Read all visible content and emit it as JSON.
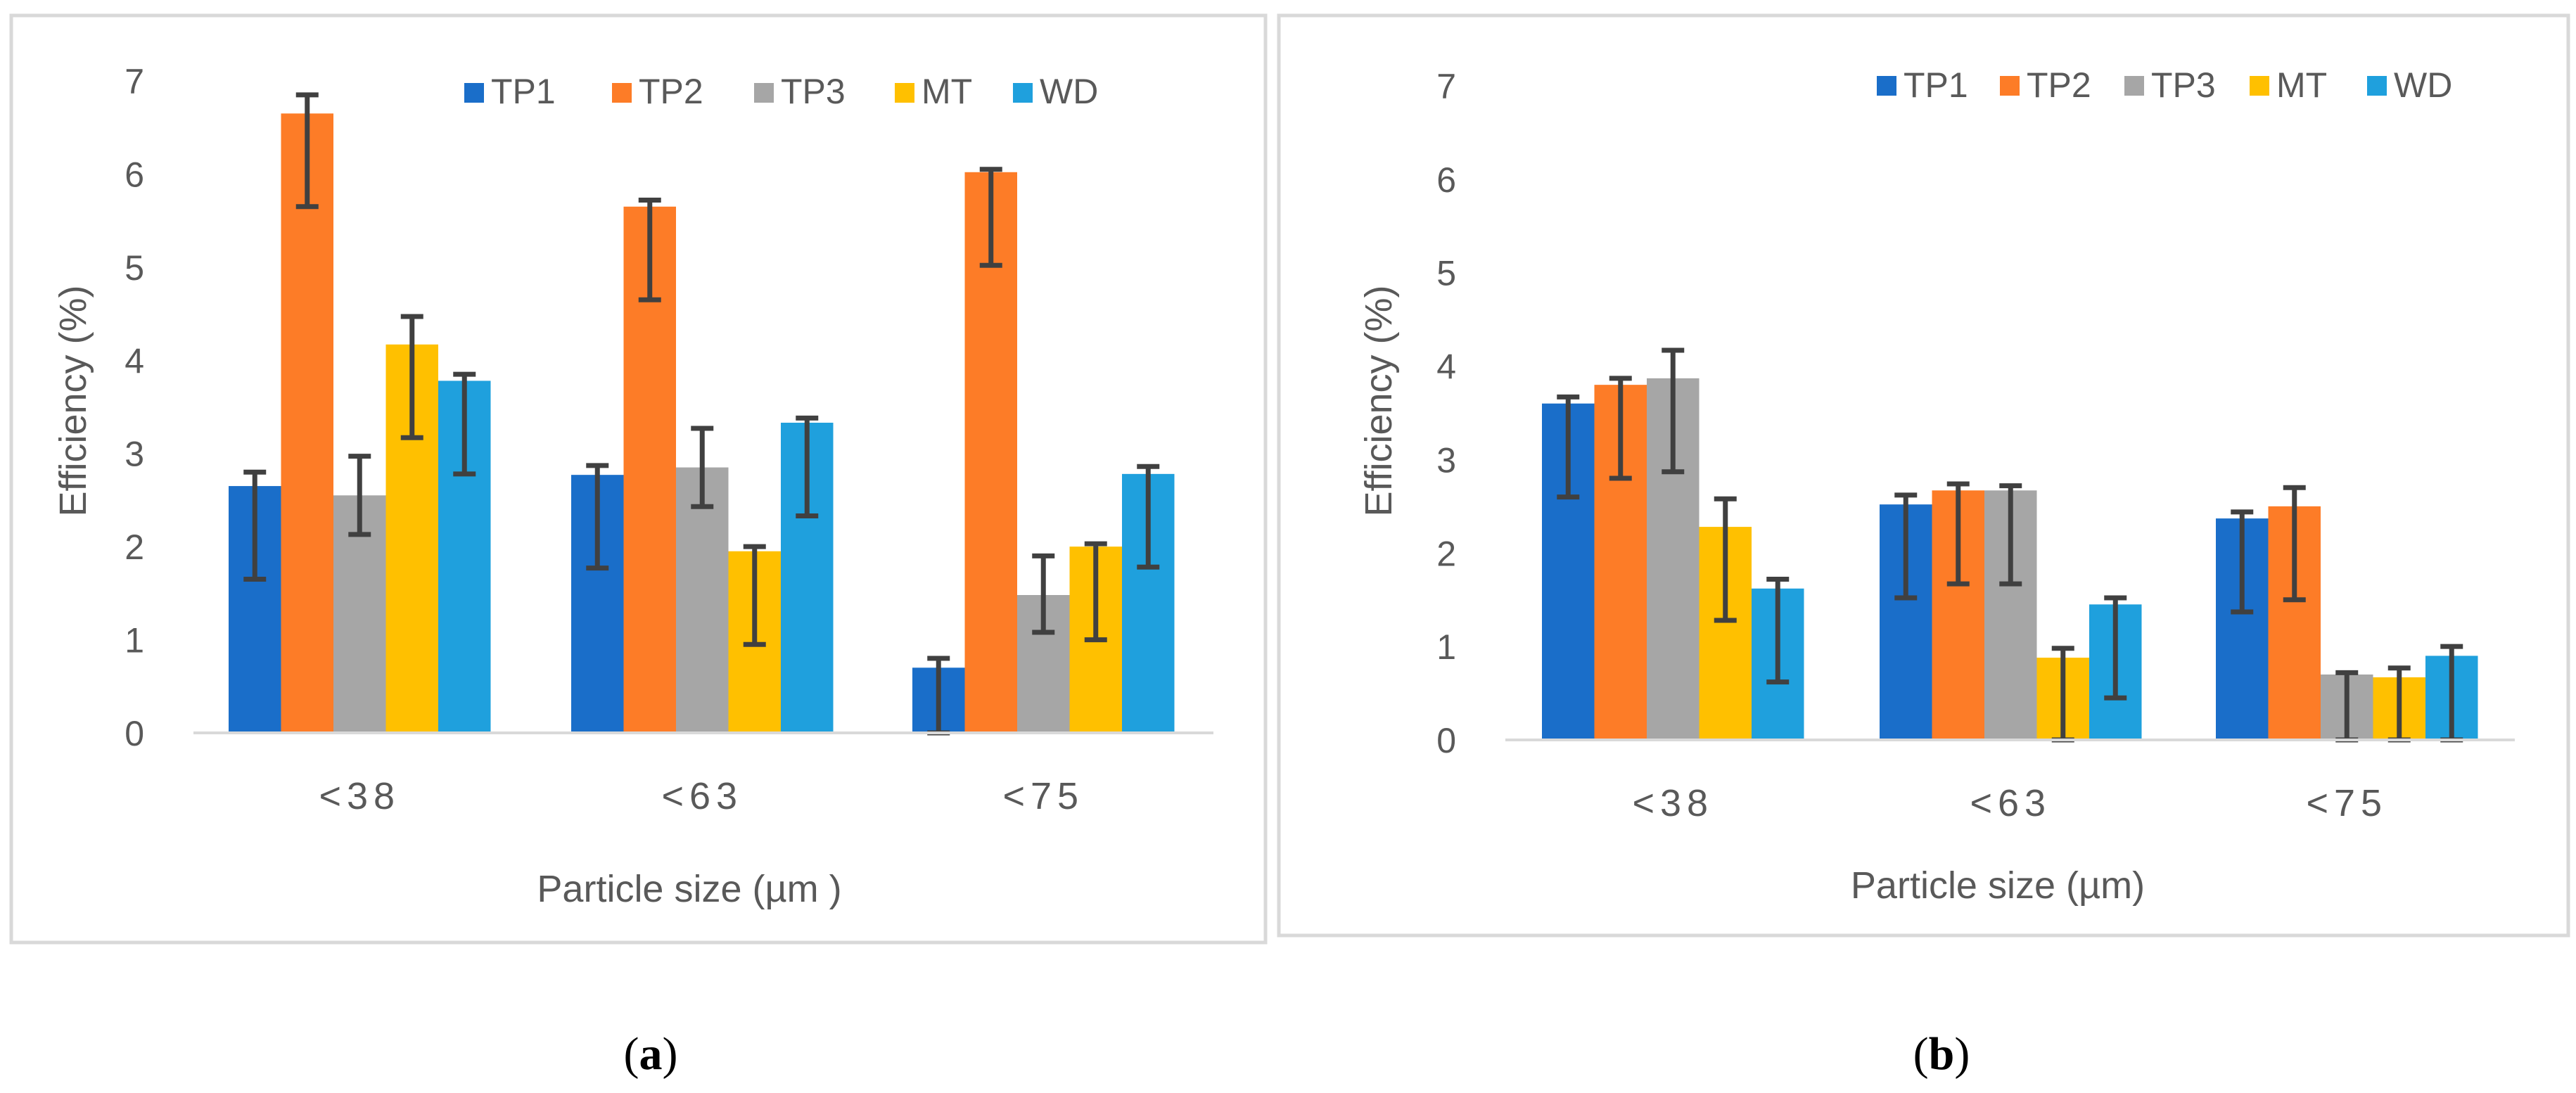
{
  "colors": {
    "TP1": "#1a6ec9",
    "TP2": "#fd7c27",
    "TP3": "#a6a6a6",
    "MT": "#ffc000",
    "WD": "#1fa0dd",
    "error_bar": "#404040",
    "axis_text": "#595959",
    "border": "#d9d9d9"
  },
  "chart_data": [
    {
      "type": "bar",
      "caption": "(a)",
      "caption_letter": "a",
      "title": "",
      "xlabel": "Particle size (µm )",
      "ylabel": "Efficiency (%)",
      "ylim": [
        0,
        7
      ],
      "yticks": [
        "0",
        "1",
        "2",
        "3",
        "4",
        "5",
        "6",
        "7"
      ],
      "grid": false,
      "legend_position": "top",
      "categories": [
        "<38",
        "<63",
        "<75"
      ],
      "series": [
        {
          "name": "TP1",
          "values": [
            2.65,
            2.77,
            0.7
          ],
          "err_low": [
            1.0,
            1.0,
            0.7
          ],
          "err_high": [
            0.15,
            0.1,
            0.1
          ]
        },
        {
          "name": "TP2",
          "values": [
            6.65,
            5.65,
            6.02
          ],
          "err_low": [
            1.0,
            1.0,
            1.0
          ],
          "err_high": [
            0.2,
            0.07,
            0.03
          ]
        },
        {
          "name": "TP3",
          "values": [
            2.55,
            2.85,
            1.48
          ],
          "err_low": [
            0.42,
            0.42,
            0.4
          ],
          "err_high": [
            0.42,
            0.42,
            0.42
          ]
        },
        {
          "name": "MT",
          "values": [
            4.17,
            1.95,
            2.0
          ],
          "err_low": [
            1.0,
            1.0,
            1.0
          ],
          "err_high": [
            0.3,
            0.05,
            0.03
          ]
        },
        {
          "name": "WD",
          "values": [
            3.78,
            3.33,
            2.78
          ],
          "err_low": [
            1.0,
            1.0,
            1.0
          ],
          "err_high": [
            0.07,
            0.05,
            0.08
          ]
        }
      ]
    },
    {
      "type": "bar",
      "caption": "(b)",
      "caption_letter": "b",
      "title": "",
      "xlabel": "Particle size (µm)",
      "ylabel": "Efficiency (%)",
      "ylim": [
        0,
        7
      ],
      "yticks": [
        "0",
        "1",
        "2",
        "3",
        "4",
        "5",
        "6",
        "7"
      ],
      "grid": false,
      "legend_position": "top",
      "categories": [
        "<38",
        "<63",
        "<75"
      ],
      "series": [
        {
          "name": "TP1",
          "values": [
            3.6,
            2.52,
            2.37
          ],
          "err_low": [
            1.0,
            1.0,
            1.0
          ],
          "err_high": [
            0.07,
            0.1,
            0.07
          ]
        },
        {
          "name": "TP2",
          "values": [
            3.8,
            2.67,
            2.5
          ],
          "err_low": [
            1.0,
            1.0,
            1.0
          ],
          "err_high": [
            0.07,
            0.07,
            0.2
          ]
        },
        {
          "name": "TP3",
          "values": [
            3.87,
            2.67,
            0.7
          ],
          "err_low": [
            1.0,
            1.0,
            0.7
          ],
          "err_high": [
            0.3,
            0.05,
            0.02
          ]
        },
        {
          "name": "MT",
          "values": [
            2.28,
            0.88,
            0.67
          ],
          "err_low": [
            1.0,
            0.88,
            0.67
          ],
          "err_high": [
            0.3,
            0.1,
            0.1
          ]
        },
        {
          "name": "WD",
          "values": [
            1.62,
            1.45,
            0.9
          ],
          "err_low": [
            1.0,
            1.0,
            0.9
          ],
          "err_high": [
            0.1,
            0.07,
            0.1
          ]
        }
      ]
    }
  ]
}
